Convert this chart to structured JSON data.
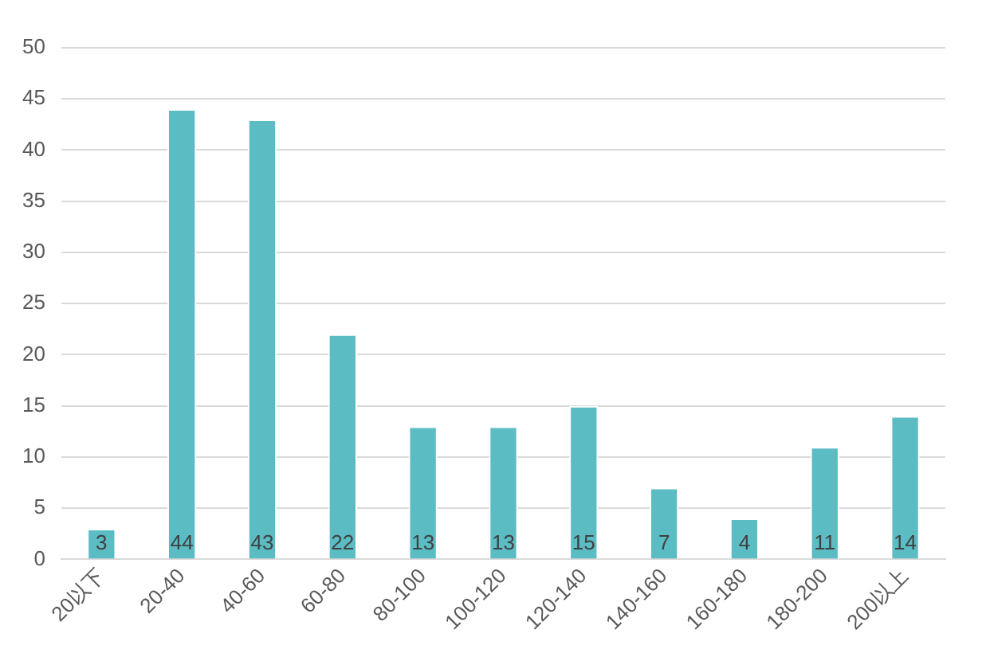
{
  "chart_data": {
    "type": "bar",
    "categories": [
      "20以下",
      "20-40",
      "40-60",
      "60-80",
      "80-100",
      "100-120",
      "120-140",
      "140-160",
      "160-180",
      "180-200",
      "200以上"
    ],
    "values": [
      3,
      44,
      43,
      22,
      13,
      13,
      15,
      7,
      4,
      11,
      14
    ],
    "color": "#5bbcc4",
    "ylim": [
      0,
      50
    ],
    "yticks": [
      0,
      5,
      10,
      15,
      20,
      25,
      30,
      35,
      40,
      45,
      50
    ],
    "grid": "y",
    "data_labels": true
  }
}
